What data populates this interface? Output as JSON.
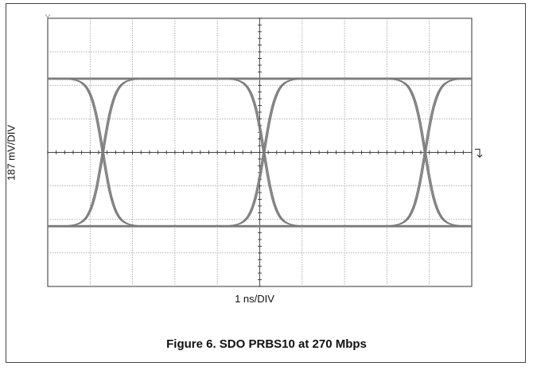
{
  "chart_data": {
    "type": "line",
    "subtype": "eye-diagram",
    "title": "Figure 6. SDO PRBS10 at 270 Mbps",
    "xlabel": "1 ns/DIV",
    "ylabel": "187 mV/DIV",
    "x_divisions": 10,
    "y_divisions": 8,
    "xlim": [
      0,
      10
    ],
    "ylim": [
      -4,
      4
    ],
    "grid": true,
    "high_level_div": 2.2,
    "low_level_div": -2.2,
    "crossings_div": [
      1.3,
      5.1,
      8.9
    ],
    "rise_fall_width_div": 0.9,
    "trace_color": "#7a7a7a",
    "grid_color": "#9a9a9a"
  }
}
